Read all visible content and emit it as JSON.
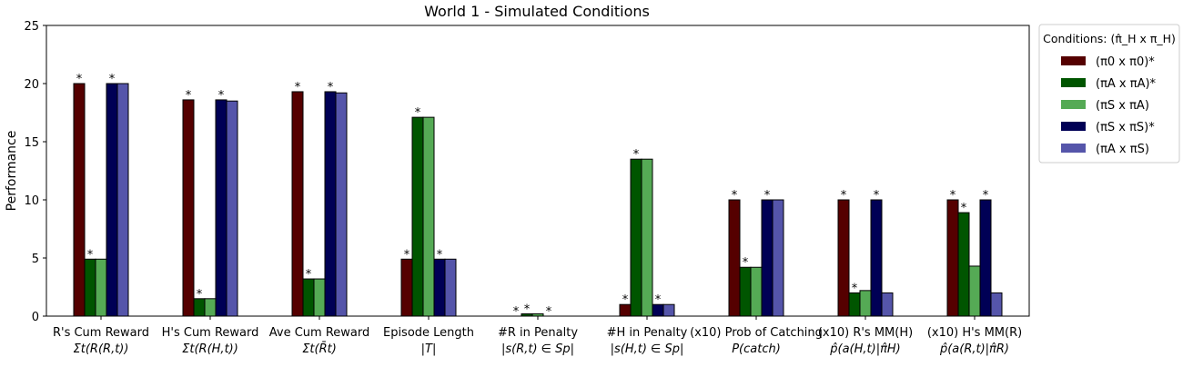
{
  "chart_data": {
    "type": "bar",
    "title": "World 1 - Simulated Conditions",
    "ylabel": "Performance",
    "xlabel": "",
    "ylim": [
      0,
      25
    ],
    "yticks": [
      0,
      5,
      10,
      15,
      20,
      25
    ],
    "grid": false,
    "legend_position": "outside top-right",
    "legend_title": "Conditions: (π̂_H x π_H)",
    "categories": [
      {
        "line1": "R's Cum Reward",
        "line2": "Σt(R(R,t))"
      },
      {
        "line1": "H's Cum Reward",
        "line2": "Σt(R(H,t))"
      },
      {
        "line1": "Ave Cum Reward",
        "line2": "Σt(R̄t)"
      },
      {
        "line1": "Episode Length",
        "line2": "|T|"
      },
      {
        "line1": "#R in Penalty",
        "line2": "|s(R,t) ∈ Sp|"
      },
      {
        "line1": "#H in Penalty",
        "line2": "|s(H,t) ∈ Sp|"
      },
      {
        "line1": "(x10) Prob of Catching",
        "line2": "P(catch)"
      },
      {
        "line1": "(x10) R's MM(H)",
        "line2": "p̂(a(H,t)|π̂H)"
      },
      {
        "line1": "(x10) H's MM(R)",
        "line2": "p̂(a(R,t)|π̂R)"
      }
    ],
    "series": [
      {
        "name": "(π0 x π0)*",
        "color": "#550000",
        "values": [
          20.0,
          18.6,
          19.3,
          4.9,
          0.0,
          1.0,
          10.0,
          10.0,
          10.0
        ],
        "stars": [
          true,
          true,
          true,
          true,
          true,
          true,
          true,
          true,
          true
        ]
      },
      {
        "name": "(πA x πA)*",
        "color": "#005500",
        "values": [
          4.9,
          1.5,
          3.2,
          17.1,
          0.2,
          13.5,
          4.2,
          2.0,
          8.9
        ],
        "stars": [
          true,
          true,
          true,
          true,
          true,
          true,
          true,
          true,
          true
        ]
      },
      {
        "name": "(πS x πA)",
        "color": "#55aa55",
        "values": [
          4.9,
          1.5,
          3.2,
          17.1,
          0.2,
          13.5,
          4.2,
          2.2,
          4.3
        ],
        "stars": [
          false,
          false,
          false,
          false,
          false,
          false,
          false,
          false,
          false
        ]
      },
      {
        "name": "(πS x πS)*",
        "color": "#000055",
        "values": [
          20.0,
          18.6,
          19.3,
          4.9,
          0.0,
          1.0,
          10.0,
          10.0,
          10.0
        ],
        "stars": [
          true,
          true,
          true,
          true,
          true,
          true,
          true,
          true,
          true
        ]
      },
      {
        "name": "(πA x πS)",
        "color": "#5555aa",
        "values": [
          20.0,
          18.5,
          19.2,
          4.9,
          0.0,
          1.0,
          10.0,
          2.0,
          2.0
        ],
        "stars": [
          false,
          false,
          false,
          false,
          false,
          false,
          false,
          false,
          false
        ]
      }
    ],
    "annotation_mark": "*"
  }
}
